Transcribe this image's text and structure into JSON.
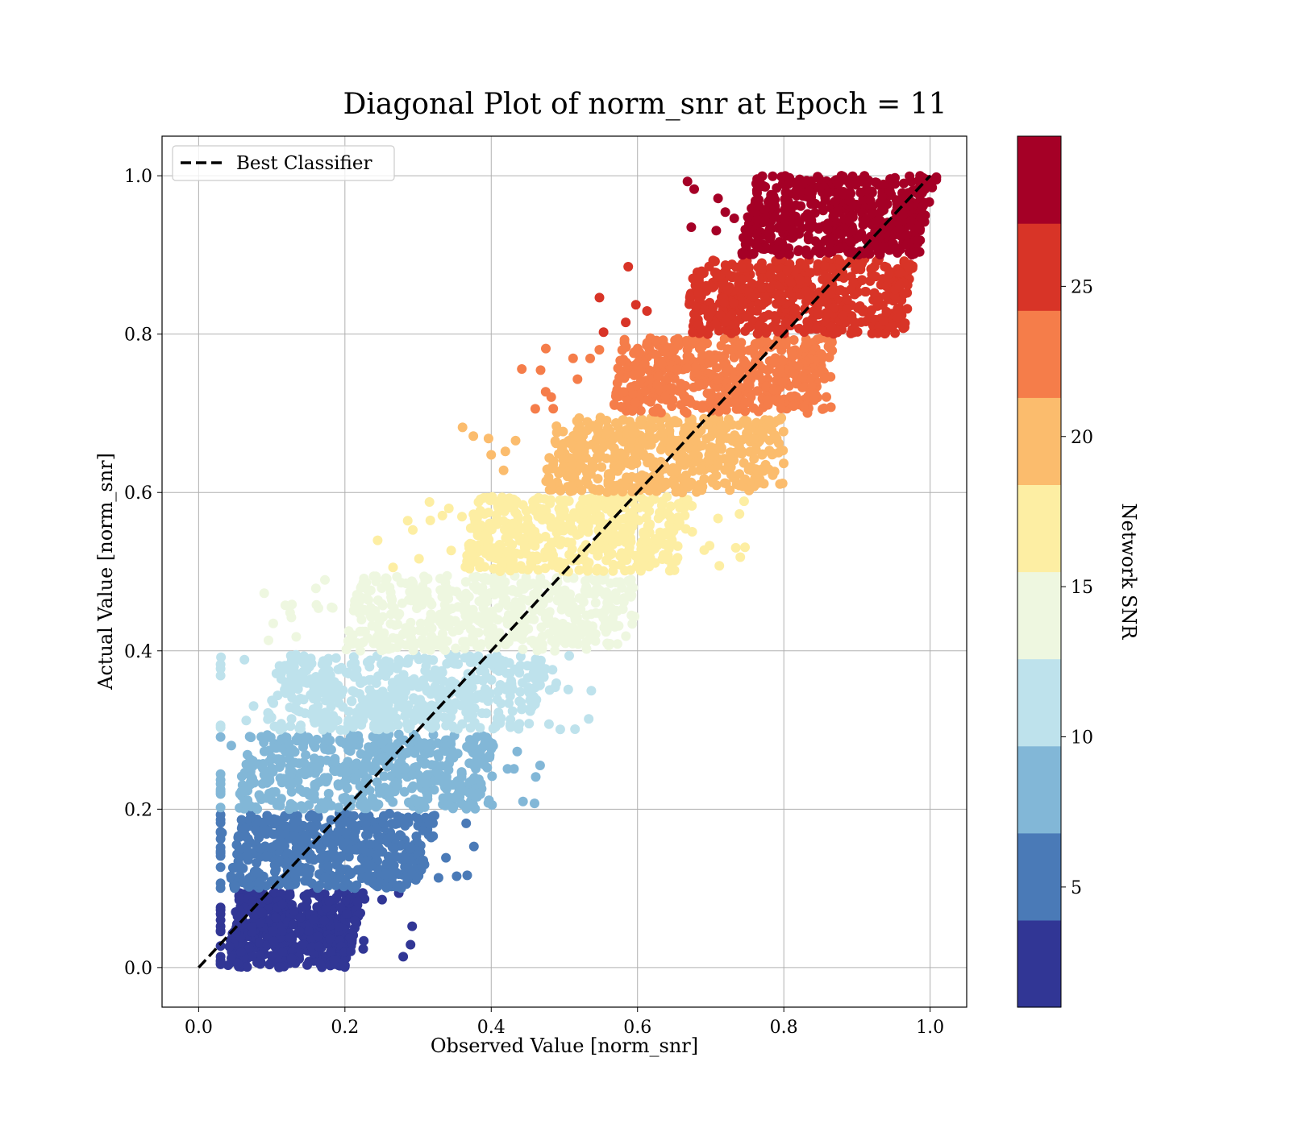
{
  "chart_data": {
    "type": "scatter",
    "title": "Diagonal Plot of norm_snr at Epoch = 11",
    "xlabel": "Observed Value [norm_snr]",
    "ylabel": "Actual Value [norm_snr]",
    "xlim": [
      -0.05,
      1.05
    ],
    "ylim": [
      -0.05,
      1.05
    ],
    "xticks": [
      "0.0",
      "0.2",
      "0.4",
      "0.6",
      "0.8",
      "1.0"
    ],
    "yticks": [
      "0.0",
      "0.2",
      "0.4",
      "0.6",
      "0.8",
      "1.0"
    ],
    "grid": true,
    "legend": {
      "placement": "upper-left",
      "label": "Best Classifier"
    },
    "reference_line": {
      "name": "Best Classifier",
      "style": "dashed",
      "color": "#000000",
      "points": [
        [
          0,
          0
        ],
        [
          1,
          1
        ]
      ]
    },
    "colorbar": {
      "label": "Network SNR",
      "range": [
        1,
        30
      ],
      "ticks": [
        "5",
        "10",
        "15",
        "20",
        "25"
      ],
      "tick_values": [
        5,
        10,
        15,
        20,
        25
      ]
    },
    "bands": [
      {
        "y_range": [
          0.0,
          0.095
        ],
        "color": "#313695",
        "x_dense": [
          0.035,
          0.2
        ],
        "x_sparse_max": 0.3
      },
      {
        "y_range": [
          0.1,
          0.195
        ],
        "color": "#4a7ab7",
        "x_dense": [
          0.04,
          0.3
        ],
        "x_sparse_max": 0.4
      },
      {
        "y_range": [
          0.2,
          0.295
        ],
        "color": "#82b7d7",
        "x_dense": [
          0.05,
          0.38
        ],
        "x_sparse_max": 0.48
      },
      {
        "y_range": [
          0.3,
          0.395
        ],
        "color": "#bee2ec",
        "x_dense": [
          0.09,
          0.45
        ],
        "x_sparse_max": 0.54
      },
      {
        "y_range": [
          0.4,
          0.495
        ],
        "color": "#eef7e0",
        "x_dense": [
          0.2,
          0.57
        ],
        "x_sparse_max": 0.6
      },
      {
        "y_range": [
          0.5,
          0.595
        ],
        "color": "#fdeea3",
        "x_dense": [
          0.36,
          0.65
        ],
        "x_sparse_max": 0.76
      },
      {
        "y_range": [
          0.6,
          0.695
        ],
        "color": "#fbbc6d",
        "x_dense": [
          0.47,
          0.77
        ],
        "x_sparse_max": 0.8
      },
      {
        "y_range": [
          0.7,
          0.795
        ],
        "color": "#f57d4a",
        "x_dense": [
          0.56,
          0.84
        ],
        "x_sparse_max": 0.87
      },
      {
        "y_range": [
          0.8,
          0.895
        ],
        "color": "#d83427",
        "x_dense": [
          0.66,
          0.95
        ],
        "x_sparse_max": 0.97
      },
      {
        "y_range": [
          0.9,
          1.0
        ],
        "color": "#a50026",
        "x_dense": [
          0.74,
          0.98
        ],
        "x_sparse_max": 0.99
      }
    ]
  }
}
